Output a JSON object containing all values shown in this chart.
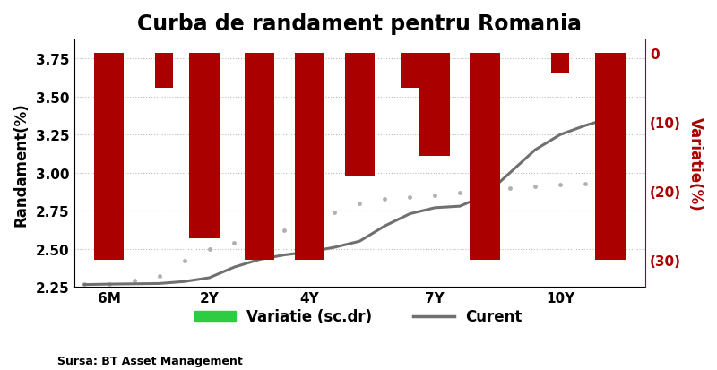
{
  "title": "Curba de randament pentru Romania",
  "ylabel_left": "Randament(%)",
  "ylabel_right": "Variatie(%)",
  "source": "Sursa: BT Asset Management",
  "legend_bar": "Variatie (sc.dr)",
  "legend_line": "Curent",
  "x_tick_labels": [
    "6M",
    "2Y",
    "4Y",
    "7Y",
    "10Y"
  ],
  "x_tick_positions": [
    1,
    3,
    5,
    7.5,
    10
  ],
  "ylim_left": [
    2.25,
    3.875
  ],
  "ylim_right": [
    -34,
    2
  ],
  "right_yticks": [
    0,
    -10,
    -20,
    -30
  ],
  "right_yticklabels": [
    "0",
    "(10)",
    "(20)",
    "(30)"
  ],
  "left_yticks": [
    2.25,
    2.5,
    2.75,
    3.0,
    3.25,
    3.5,
    3.75
  ],
  "bar_color": "#AA0000",
  "bar_positions": [
    1.0,
    2.1,
    2.9,
    4.0,
    5.0,
    6.0,
    7.0,
    7.5,
    8.5,
    10.0,
    11.0
  ],
  "bar_widths": [
    0.6,
    0.35,
    0.6,
    0.6,
    0.6,
    0.6,
    0.35,
    0.6,
    0.6,
    0.35,
    0.6
  ],
  "bar_values": [
    -30,
    -5,
    -27,
    -30,
    -30,
    -18,
    -5,
    -15,
    -30,
    -3,
    -30
  ],
  "current_x": [
    0.5,
    1.0,
    1.5,
    2.0,
    2.5,
    3.0,
    3.5,
    4.0,
    4.5,
    5.0,
    5.5,
    6.0,
    6.5,
    7.0,
    7.5,
    8.0,
    8.5,
    9.0,
    9.5,
    10.0,
    10.5,
    11.0
  ],
  "current_y": [
    2.265,
    2.268,
    2.27,
    2.272,
    2.285,
    2.31,
    2.38,
    2.43,
    2.46,
    2.48,
    2.51,
    2.55,
    2.65,
    2.73,
    2.77,
    2.78,
    2.85,
    3.0,
    3.15,
    3.25,
    3.31,
    3.36
  ],
  "previous_x": [
    0.5,
    1.0,
    1.5,
    2.0,
    2.5,
    3.0,
    3.5,
    4.0,
    4.5,
    5.0,
    5.5,
    6.0,
    6.5,
    7.0,
    7.5,
    8.0,
    8.5,
    9.0,
    9.5,
    10.0,
    10.5,
    11.0
  ],
  "previous_y": [
    2.27,
    2.27,
    2.29,
    2.32,
    2.42,
    2.5,
    2.54,
    2.57,
    2.62,
    2.68,
    2.74,
    2.8,
    2.83,
    2.84,
    2.85,
    2.87,
    2.89,
    2.9,
    2.91,
    2.92,
    2.93,
    2.94
  ],
  "line_color": "#707070",
  "dot_color": "#b0b0b0",
  "background_color": "#ffffff",
  "grid_color": "#bbbbbb",
  "title_fontsize": 17,
  "axis_label_fontsize": 11,
  "tick_fontsize": 10,
  "xlim": [
    0.3,
    11.7
  ]
}
